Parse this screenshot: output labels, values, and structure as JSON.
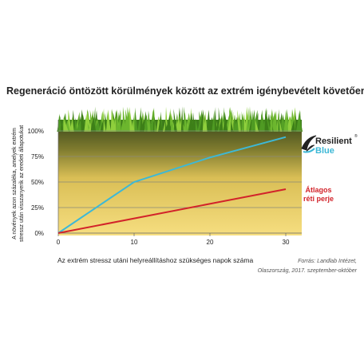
{
  "chart_data": {
    "type": "line",
    "title": "Regeneráció öntözött körülmények között az extrém igénybevételt követően",
    "y_label": [
      "A növények azon százaléka, amelyek extrém",
      "stressz után visszanyerik az eredeti állapotukat"
    ],
    "x_label": "Az extrém stressz utáni helyreállításhoz szükséges napok száma",
    "source": [
      "Forrás: Landlab Intézet,",
      "Olaszország, 2017. szeptember-október"
    ],
    "logo": [
      "Resilient",
      "Blue",
      "®"
    ],
    "annotation": {
      "lines": [
        "Átlagos",
        "réti perje"
      ],
      "color": "#d2232a"
    },
    "xlim": [
      0,
      30
    ],
    "xticks": [
      0,
      10,
      20,
      30
    ],
    "ylim": [
      0,
      100
    ],
    "yticks": [
      {
        "value": 0,
        "label": "0%"
      },
      {
        "value": 25,
        "label": "25%"
      },
      {
        "value": 50,
        "label": "50%"
      },
      {
        "value": 75,
        "label": "75%"
      },
      {
        "value": 100,
        "label": "100%"
      }
    ],
    "grid": true,
    "series": [
      {
        "name": "Resilient Blue",
        "color": "#3db8d6",
        "x": [
          0,
          10,
          20,
          30
        ],
        "values": [
          0,
          50,
          74,
          94
        ]
      },
      {
        "name": "Átlagos réti perje",
        "color": "#d2232a",
        "x": [
          0,
          30
        ],
        "values": [
          0,
          43
        ]
      }
    ]
  }
}
